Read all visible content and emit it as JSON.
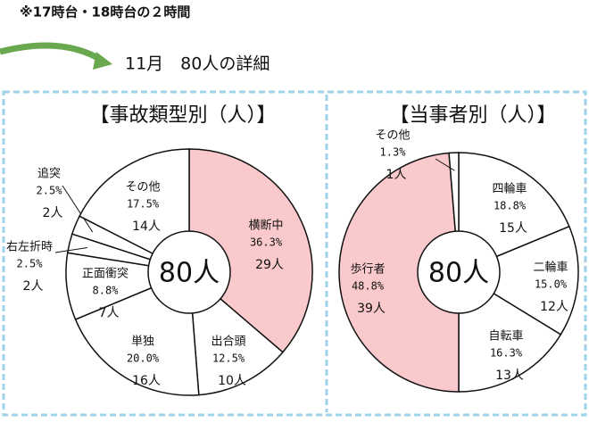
{
  "header": {
    "note": "※17時台・18時台の２時間",
    "subtitle": "11月　80人の詳細"
  },
  "chart_data": [
    {
      "type": "pie",
      "title": "【事故類型別（人）】",
      "center_label": "80人",
      "categories": [
        "横断中",
        "出合頭",
        "単独",
        "正面衝突",
        "右左折時",
        "追突",
        "その他"
      ],
      "values": [
        36.3,
        12.5,
        20.0,
        8.8,
        2.5,
        2.5,
        17.5
      ],
      "value_labels": [
        "36.3%",
        "12.5%",
        "20.0%",
        "8.8%",
        "2.5%",
        "2.5%",
        "17.5%"
      ],
      "count_labels": [
        "29人",
        "10人",
        "16人",
        "7人",
        "2人",
        "2人",
        "14人"
      ],
      "colors": [
        "#f9c9cc",
        "#ffffff",
        "#ffffff",
        "#ffffff",
        "#ffffff",
        "#ffffff",
        "#ffffff"
      ]
    },
    {
      "type": "pie",
      "title": "【当事者別（人）】",
      "center_label": "80人",
      "categories": [
        "四輪車",
        "二輪車",
        "自転車",
        "歩行者",
        "その他"
      ],
      "values": [
        18.8,
        15.0,
        16.3,
        48.8,
        1.3
      ],
      "value_labels": [
        "18.8%",
        "15.0%",
        "16.3%",
        "48.8%",
        "1.3%"
      ],
      "count_labels": [
        "15人",
        "12人",
        "13人",
        "39人",
        "1人"
      ],
      "colors": [
        "#ffffff",
        "#ffffff",
        "#ffffff",
        "#f9c9cc",
        "#ffffff"
      ]
    }
  ]
}
